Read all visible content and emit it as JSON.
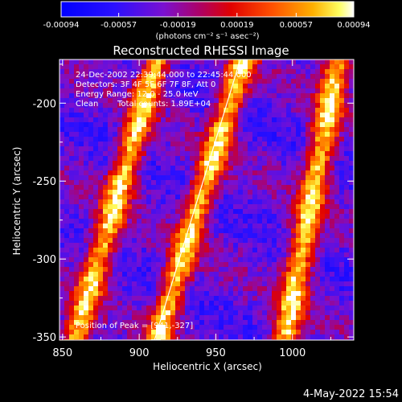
{
  "colorbar": {
    "tick_labels": [
      "-0.00094",
      "-0.00057",
      "-0.00019",
      "0.00019",
      "0.00057",
      "0.00094"
    ],
    "tick_values": [
      -0.00094,
      -0.00057,
      -0.00019,
      0.00019,
      0.00057,
      0.00094
    ],
    "vmin": -0.00094,
    "vmax": 0.00094,
    "unit_label": "(photons cm⁻² s⁻¹ asec⁻²)",
    "colormap": "blue-purple-red-orange-yellow-white"
  },
  "chart_data": {
    "type": "heatmap",
    "title": "Reconstructed RHESSI Image",
    "xlabel": "Heliocentric X (arcsec)",
    "ylabel": "Heliocentric Y (arcsec)",
    "xlim": [
      848,
      1040
    ],
    "ylim": [
      -352,
      -172
    ],
    "xticks": [
      850,
      900,
      950,
      1000
    ],
    "yticks": [
      -200,
      -250,
      -300,
      -350
    ],
    "limb_line": [
      [
        910,
        -352
      ],
      [
        966,
        -172
      ]
    ],
    "bright_stripes": [
      {
        "x_at_ymin": 858,
        "x_at_ymax": 912
      },
      {
        "x_at_ymin": 912,
        "x_at_ymax": 968
      },
      {
        "x_at_ymin": 995,
        "x_at_ymax": 1030
      }
    ],
    "peak": [
      941,
      -327
    ]
  },
  "annotations": {
    "time": "24-Dec-2002 22:39:44.000 to 22:45:44.000",
    "detectors": "Detectors: 3F 4F 5F 6F 7F 8F, Att 0",
    "energy": "Energy Range: 12.0 - 25.0 keV",
    "method": "Clean",
    "counts": "Total counts: 1.89E+04",
    "peak": "Position of Peak = [941,-327]"
  },
  "footer": {
    "date": "4-May-2022 15:54"
  }
}
